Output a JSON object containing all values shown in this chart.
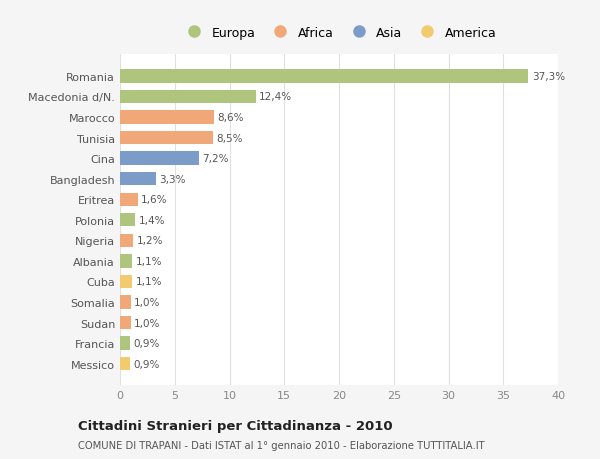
{
  "categories": [
    "Messico",
    "Francia",
    "Sudan",
    "Somalia",
    "Cuba",
    "Albania",
    "Nigeria",
    "Polonia",
    "Eritrea",
    "Bangladesh",
    "Cina",
    "Tunisia",
    "Marocco",
    "Macedonia d/N.",
    "Romania"
  ],
  "values": [
    0.9,
    0.9,
    1.0,
    1.0,
    1.1,
    1.1,
    1.2,
    1.4,
    1.6,
    3.3,
    7.2,
    8.5,
    8.6,
    12.4,
    37.3
  ],
  "labels": [
    "0,9%",
    "0,9%",
    "1,0%",
    "1,0%",
    "1,1%",
    "1,1%",
    "1,2%",
    "1,4%",
    "1,6%",
    "3,3%",
    "7,2%",
    "8,5%",
    "8,6%",
    "12,4%",
    "37,3%"
  ],
  "colors": [
    "#f2cb6e",
    "#afc47d",
    "#f0a878",
    "#f0a878",
    "#f2cb6e",
    "#afc47d",
    "#f0a878",
    "#afc47d",
    "#f0a878",
    "#7b9cc9",
    "#7b9cc9",
    "#f0a878",
    "#f0a878",
    "#afc47d",
    "#afc47d"
  ],
  "legend_labels": [
    "Europa",
    "Africa",
    "Asia",
    "America"
  ],
  "legend_colors": [
    "#afc47d",
    "#f0a878",
    "#7b9cc9",
    "#f2cb6e"
  ],
  "title": "Cittadini Stranieri per Cittadinanza - 2010",
  "subtitle": "COMUNE DI TRAPANI - Dati ISTAT al 1° gennaio 2010 - Elaborazione TUTTITALIA.IT",
  "xlim": [
    0,
    40
  ],
  "xticks": [
    0,
    5,
    10,
    15,
    20,
    25,
    30,
    35,
    40
  ],
  "bg_color": "#f5f5f5",
  "plot_bg_color": "#ffffff",
  "grid_color": "#e0e0e0",
  "bar_height": 0.65
}
